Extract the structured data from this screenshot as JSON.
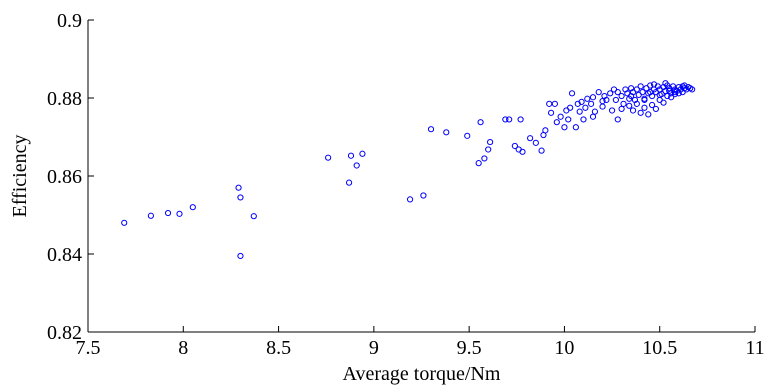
{
  "chart_data": {
    "type": "scatter",
    "title": "",
    "xlabel": "Average torque/Nm",
    "ylabel": "Efficiency",
    "xlim": [
      7.5,
      11
    ],
    "ylim": [
      0.82,
      0.9
    ],
    "xticks": [
      7.5,
      8,
      8.5,
      9,
      9.5,
      10,
      10.5,
      11
    ],
    "xtick_labels": [
      "7.5",
      "8",
      "8.5",
      "9",
      "9.5",
      "10",
      "10.5",
      "11"
    ],
    "yticks": [
      0.82,
      0.84,
      0.86,
      0.88,
      0.9
    ],
    "ytick_labels": [
      "0.82",
      "0.84",
      "0.86",
      "0.88",
      "0.9"
    ],
    "grid": false,
    "marker": "open-circle",
    "marker_color": "#0000ff",
    "series": [
      {
        "x": [
          7.69,
          7.83,
          7.92,
          7.98,
          8.05,
          8.29,
          8.3,
          8.3,
          8.37,
          8.76,
          8.87,
          8.88,
          8.91,
          8.94,
          9.19,
          9.26,
          9.3,
          9.38,
          9.49,
          9.55,
          9.56,
          9.58,
          9.6,
          9.61,
          9.69,
          9.71,
          9.74,
          9.76,
          9.77,
          9.78,
          9.82,
          9.85,
          9.88,
          9.89,
          9.9,
          9.92,
          9.93,
          9.95,
          9.96,
          9.98,
          10.0,
          10.01,
          10.02,
          10.03,
          10.04,
          10.06,
          10.07,
          10.08,
          10.09,
          10.11,
          10.12,
          10.14,
          10.15,
          10.16,
          10.18,
          10.2,
          10.21,
          10.22,
          10.24,
          10.26,
          10.27,
          10.28,
          10.3,
          10.31,
          10.32,
          10.33,
          10.34,
          10.35,
          10.36,
          10.37,
          10.38,
          10.39,
          10.4,
          10.41,
          10.42,
          10.43,
          10.44,
          10.45,
          10.46,
          10.47,
          10.48,
          10.49,
          10.5,
          10.51,
          10.52,
          10.53,
          10.54,
          10.55,
          10.56,
          10.57,
          10.58,
          10.59,
          10.6,
          10.61,
          10.62,
          10.63,
          10.64,
          10.65,
          10.66,
          10.67,
          10.3,
          10.34,
          10.38,
          10.42,
          10.46,
          10.5,
          10.54,
          10.58,
          10.62,
          10.4,
          10.44,
          10.48,
          10.52,
          10.56,
          10.36,
          10.28,
          10.25,
          10.2,
          10.15,
          10.1,
          10.45,
          10.55,
          10.6,
          10.35,
          10.42,
          10.5,
          10.58,
          10.47,
          10.53,
          10.63
        ],
        "y": [
          0.848,
          0.8498,
          0.8505,
          0.8503,
          0.852,
          0.857,
          0.8545,
          0.8395,
          0.8497,
          0.8647,
          0.8583,
          0.8652,
          0.8627,
          0.8657,
          0.854,
          0.855,
          0.872,
          0.8712,
          0.8703,
          0.8633,
          0.8738,
          0.8645,
          0.8668,
          0.8687,
          0.8745,
          0.8745,
          0.8677,
          0.8668,
          0.8745,
          0.8662,
          0.8697,
          0.8685,
          0.8665,
          0.8705,
          0.8717,
          0.8785,
          0.8762,
          0.8785,
          0.8738,
          0.8752,
          0.8725,
          0.8768,
          0.8745,
          0.8775,
          0.8812,
          0.8725,
          0.8785,
          0.8765,
          0.879,
          0.8775,
          0.8798,
          0.8785,
          0.8802,
          0.8765,
          0.8815,
          0.8778,
          0.8805,
          0.8795,
          0.8812,
          0.8822,
          0.8795,
          0.8815,
          0.8805,
          0.8785,
          0.8822,
          0.8812,
          0.8798,
          0.8825,
          0.8815,
          0.8795,
          0.8822,
          0.8808,
          0.883,
          0.8815,
          0.8795,
          0.8825,
          0.8812,
          0.8832,
          0.8805,
          0.8822,
          0.8815,
          0.883,
          0.8822,
          0.881,
          0.8828,
          0.8818,
          0.8832,
          0.8825,
          0.8812,
          0.883,
          0.8822,
          0.8818,
          0.8828,
          0.8822,
          0.883,
          0.8825,
          0.8822,
          0.8828,
          0.8825,
          0.8822,
          0.8772,
          0.878,
          0.8785,
          0.8775,
          0.8782,
          0.8795,
          0.8805,
          0.881,
          0.8815,
          0.8762,
          0.8758,
          0.8772,
          0.8788,
          0.8802,
          0.8768,
          0.8745,
          0.8768,
          0.8792,
          0.8752,
          0.8745,
          0.8815,
          0.8818,
          0.8812,
          0.8805,
          0.8798,
          0.8808,
          0.8815,
          0.8835,
          0.8838,
          0.8832
        ]
      }
    ]
  }
}
